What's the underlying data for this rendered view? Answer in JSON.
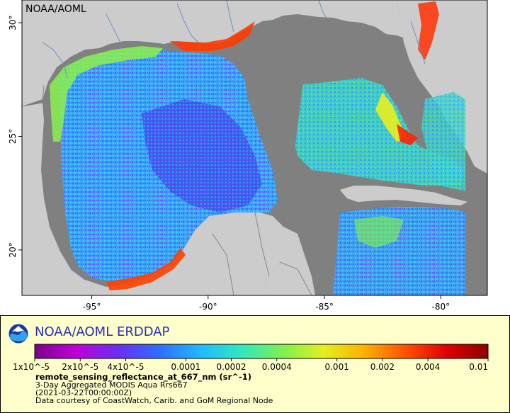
{
  "map": {
    "corner_label": "NOAA/AOML",
    "lon_ticks": [
      {
        "lon": -95,
        "label": "-95°"
      },
      {
        "lon": -90,
        "label": "-90°"
      },
      {
        "lon": -85,
        "label": "-85°"
      },
      {
        "lon": -80,
        "label": "-80°"
      }
    ],
    "lat_ticks": [
      {
        "lat": 30,
        "label": "30°"
      },
      {
        "lat": 25,
        "label": "25°"
      },
      {
        "lat": 20,
        "label": "20°"
      }
    ],
    "lon_range": [
      -98,
      -78
    ],
    "lat_range": [
      18,
      31
    ],
    "colors": {
      "land": "#cccccc",
      "no_data": "#808080",
      "rivers": "#6b8fc4",
      "borders": "#777777"
    }
  },
  "panel": {
    "title": "NOAA/AOML ERDDAP",
    "colorbar": {
      "scale": "log",
      "tick_labels": [
        "1x10^-5",
        "2x10^-5",
        "4x10^-5",
        "0.0001",
        "0.0002",
        "0.0004",
        "0.001",
        "0.002",
        "0.004",
        "0.01"
      ],
      "colors": [
        "#7a008a",
        "#c000d8",
        "#6a2ef0",
        "#2f6bff",
        "#22b8ff",
        "#2fe8c0",
        "#7cf050",
        "#e0f020",
        "#ffb000",
        "#ff5000",
        "#e00000",
        "#8a0000"
      ]
    },
    "variable": "remote_sensing_reflectance_at_667_nm (sr^-1)",
    "description": "3-Day Aggregated MODIS Aqua Rrs667",
    "time": "(2021-03-22T00:00:00Z)",
    "credit": "Data courtesy of CoastWatch, Carib. and GoM Regional Node"
  }
}
